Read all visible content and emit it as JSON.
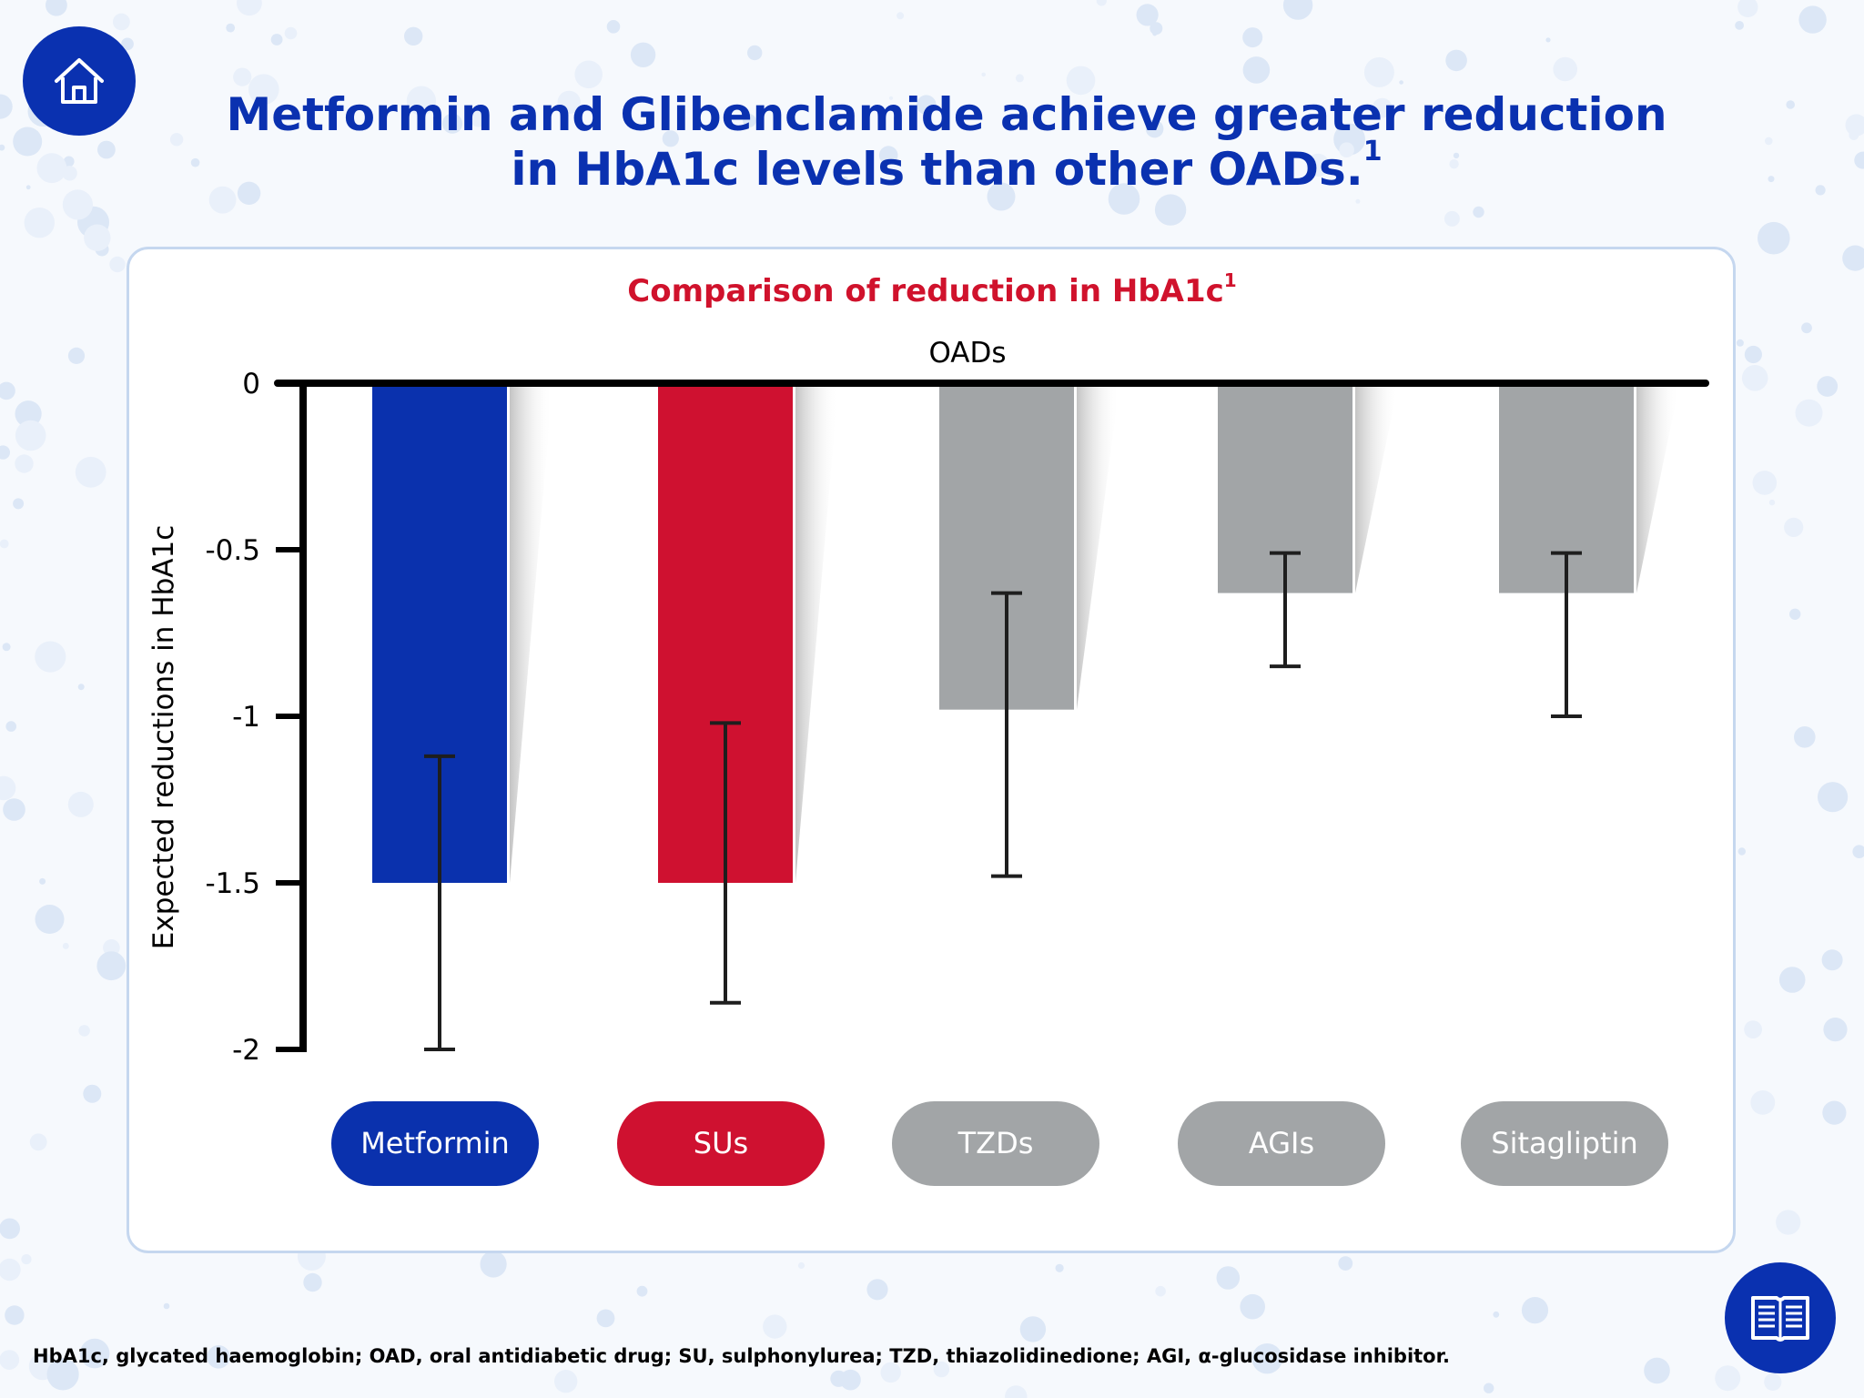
{
  "header": {
    "title_line1": "Metformin and Glibenclamide achieve greater reduction",
    "title_line2": "in HbA1c levels than other OADs.",
    "title_superscript": "1"
  },
  "nav": {
    "home_icon": "home-icon",
    "reference_icon": "book-icon"
  },
  "chart": {
    "title": "Comparison of reduction in HbA1c",
    "title_superscript": "1"
  },
  "chart_data": {
    "type": "bar",
    "title": "Comparison of reduction in HbA1c",
    "xlabel": "OADs",
    "ylabel": "Expected reductions in HbA1c",
    "ylim": [
      -2,
      0
    ],
    "yticks": [
      0,
      -0.5,
      -1,
      -1.5,
      -2
    ],
    "ytick_labels": [
      "0",
      "-0.5",
      "-1",
      "-1.5",
      "-2"
    ],
    "categories": [
      "Metformin",
      "SUs",
      "TZDs",
      "AGIs",
      "Sitagliptin"
    ],
    "values": [
      -1.5,
      -1.5,
      -0.98,
      -0.63,
      -0.63
    ],
    "error_low": [
      -2.0,
      -1.86,
      -1.48,
      -0.85,
      -1.0
    ],
    "error_high": [
      -1.12,
      -1.02,
      -0.63,
      -0.51,
      -0.51
    ],
    "colors": [
      "#0a31ad",
      "#cf1130",
      "#a2a5a7",
      "#a2a5a7",
      "#a2a5a7"
    ],
    "legend_placement": "bottom",
    "grid": false
  },
  "legend": [
    {
      "label": "Metformin",
      "color": "#0a31ad"
    },
    {
      "label": "SUs",
      "color": "#cf1130"
    },
    {
      "label": "TZDs",
      "color": "#a2a5a7"
    },
    {
      "label": "AGIs",
      "color": "#a2a5a7"
    },
    {
      "label": "Sitagliptin",
      "color": "#a2a5a7"
    }
  ],
  "footnote": "HbA1c, glycated haemoglobin; OAD, oral antidiabetic drug; SU, sulphonylurea; TZD, thiazolidinedione; AGI, α-glucosidase inhibitor.",
  "colors": {
    "brand_blue": "#0a31b0",
    "accent_red": "#d0122c",
    "neutral_grey": "#a2a5a7"
  }
}
